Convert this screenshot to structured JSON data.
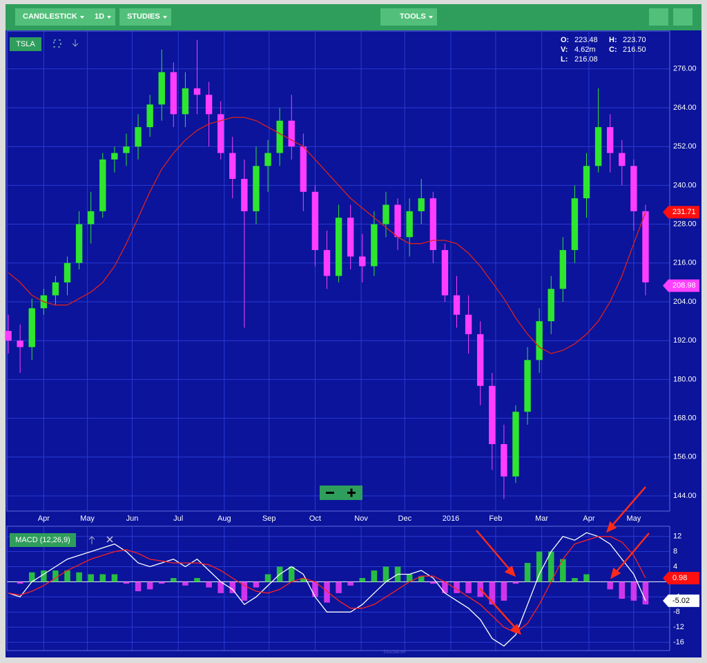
{
  "toolbar": {
    "chart_type": "CANDLESTICK",
    "interval": "1D",
    "studies": "STUDIES",
    "tools": "TOOLS"
  },
  "chart_data": [
    {
      "type": "candlestick",
      "symbol": "TSLA",
      "readout": [
        {
          "label": "O:",
          "value": "223.48"
        },
        {
          "label": "H:",
          "value": "223.70"
        },
        {
          "label": "V:",
          "value": "4.62m"
        },
        {
          "label": "C:",
          "value": "216.50"
        },
        {
          "label": "L:",
          "value": "216.08"
        }
      ],
      "x": [
        0,
        1,
        2,
        3,
        4,
        5,
        6,
        7,
        8,
        9,
        10,
        11,
        12,
        13,
        14,
        15,
        16,
        17,
        18,
        19,
        20,
        21,
        22,
        23,
        24,
        25,
        26,
        27,
        28,
        29,
        30,
        31,
        32,
        33,
        34,
        35,
        36,
        37,
        38,
        39,
        40,
        41,
        42,
        43,
        44,
        45,
        46,
        47,
        48,
        49,
        50,
        51,
        52,
        53,
        54
      ],
      "open": [
        195,
        192,
        190,
        202,
        206,
        210,
        216,
        228,
        232,
        248,
        250,
        252,
        258,
        265,
        275,
        262,
        270,
        268,
        262,
        250,
        242,
        232,
        246,
        250,
        260,
        252,
        238,
        220,
        212,
        230,
        218,
        215,
        228,
        234,
        224,
        232,
        236,
        220,
        206,
        200,
        194,
        178,
        160,
        150,
        170,
        186,
        198,
        208,
        220,
        236,
        246,
        258,
        250,
        246,
        232
      ],
      "high": [
        200,
        197,
        205,
        208,
        212,
        218,
        232,
        238,
        250,
        252,
        256,
        262,
        268,
        282,
        278,
        275,
        285,
        272,
        266,
        255,
        248,
        252,
        254,
        264,
        268,
        256,
        240,
        226,
        234,
        234,
        225,
        232,
        238,
        236,
        236,
        242,
        238,
        222,
        212,
        206,
        198,
        182,
        166,
        172,
        190,
        202,
        212,
        224,
        240,
        250,
        270,
        262,
        254,
        248,
        234
      ],
      "low": [
        188,
        182,
        186,
        200,
        203,
        206,
        214,
        222,
        230,
        244,
        246,
        248,
        255,
        260,
        258,
        258,
        262,
        252,
        248,
        236,
        196,
        228,
        238,
        246,
        248,
        232,
        215,
        208,
        210,
        214,
        210,
        212,
        224,
        220,
        218,
        228,
        216,
        204,
        196,
        188,
        172,
        152,
        143,
        148,
        166,
        182,
        194,
        204,
        216,
        230,
        244,
        244,
        240,
        226,
        206
      ],
      "close": [
        192,
        190,
        202,
        206,
        210,
        216,
        228,
        232,
        248,
        250,
        252,
        258,
        265,
        275,
        262,
        270,
        268,
        262,
        250,
        242,
        232,
        246,
        250,
        260,
        252,
        238,
        220,
        212,
        230,
        218,
        215,
        228,
        234,
        224,
        232,
        236,
        220,
        206,
        200,
        194,
        178,
        160,
        150,
        170,
        186,
        198,
        208,
        220,
        236,
        246,
        258,
        250,
        246,
        232,
        210
      ],
      "up_color": "#2ee62e",
      "down_color": "#ff3dff",
      "overlay": {
        "color": "#e0201c",
        "values": [
          213,
          210,
          206,
          204,
          203,
          203,
          205,
          207,
          210,
          215,
          222,
          230,
          238,
          245,
          250,
          254,
          257,
          259,
          260,
          261,
          261,
          260,
          258,
          256,
          254,
          252,
          248,
          244,
          240,
          236,
          233,
          230,
          227,
          224,
          222,
          222,
          223,
          223,
          222,
          219,
          215,
          210,
          205,
          199,
          194,
          190,
          188,
          189,
          191,
          194,
          198,
          204,
          212,
          222,
          231.71
        ]
      },
      "price_flags": [
        {
          "value": 231.71,
          "color": "#ff1010",
          "text_color": "#ffffff"
        },
        {
          "value": 208.98,
          "color": "#ff40ff",
          "text_color": "#ffffff"
        }
      ],
      "xlim": [
        -0.12,
        56.05
      ],
      "xticks": [
        {
          "value": 3.0,
          "label": "Apr"
        },
        {
          "value": 6.7,
          "label": "May"
        },
        {
          "value": 10.5,
          "label": "Jun"
        },
        {
          "value": 14.4,
          "label": "Jul"
        },
        {
          "value": 18.3,
          "label": "Aug"
        },
        {
          "value": 22.1,
          "label": "Sep"
        },
        {
          "value": 26.0,
          "label": "Oct"
        },
        {
          "value": 29.9,
          "label": "Nov"
        },
        {
          "value": 33.6,
          "label": "Dec"
        },
        {
          "value": 37.5,
          "label": "2016"
        },
        {
          "value": 41.3,
          "label": "Feb"
        },
        {
          "value": 45.2,
          "label": "Mar"
        },
        {
          "value": 49.2,
          "label": "Apr"
        },
        {
          "value": 53.0,
          "label": "May"
        }
      ],
      "ylim": [
        139.3,
        287.7
      ],
      "yticks": [
        {
          "value": 144,
          "label": "144.00"
        },
        {
          "value": 156,
          "label": "156.00"
        },
        {
          "value": 168,
          "label": "168.00"
        },
        {
          "value": 180,
          "label": "180.00"
        },
        {
          "value": 192,
          "label": "192.00"
        },
        {
          "value": 204,
          "label": "204.00"
        },
        {
          "value": 216,
          "label": "216.00"
        },
        {
          "value": 228,
          "label": "228.00"
        },
        {
          "value": 240,
          "label": "240.00"
        },
        {
          "value": 252,
          "label": "252.00"
        },
        {
          "value": 264,
          "label": "264.00"
        },
        {
          "value": 276,
          "label": "276.00"
        }
      ],
      "grid": true
    },
    {
      "type": "macd",
      "title": "MACD (12,26,9)",
      "x": [
        0,
        1,
        2,
        3,
        4,
        5,
        6,
        7,
        8,
        9,
        10,
        11,
        12,
        13,
        14,
        15,
        16,
        17,
        18,
        19,
        20,
        21,
        22,
        23,
        24,
        25,
        26,
        27,
        28,
        29,
        30,
        31,
        32,
        33,
        34,
        35,
        36,
        37,
        38,
        39,
        40,
        41,
        42,
        43,
        44,
        45,
        46,
        47,
        48,
        49,
        50,
        51,
        52,
        53,
        54
      ],
      "series": [
        {
          "color": "#ffffff",
          "values": [
            -3,
            -4,
            0,
            2,
            4,
            6,
            7,
            8,
            9,
            10,
            8,
            5,
            4,
            5,
            6,
            4,
            6,
            3,
            0,
            -2,
            -6,
            -4,
            -1,
            2,
            4,
            2,
            -4,
            -8,
            -8,
            -8,
            -6,
            -3,
            0,
            2,
            2,
            3,
            1,
            -3,
            -5,
            -7,
            -10,
            -15,
            -17,
            -14,
            -6,
            2,
            8,
            12,
            11,
            13,
            12,
            10,
            6,
            2,
            -5.02
          ]
        },
        {
          "color": "#ff2020",
          "values": [
            -3,
            -3.5,
            -2.5,
            -1,
            1,
            3,
            4.5,
            6,
            7,
            8,
            8.5,
            7.5,
            6,
            5.5,
            5,
            5,
            5,
            4.5,
            3,
            1,
            -1,
            -2.5,
            -3,
            -2,
            0,
            1,
            0,
            -2.5,
            -5,
            -7,
            -7,
            -6,
            -4,
            -2,
            0,
            1.5,
            1.5,
            0,
            -2,
            -4,
            -6,
            -9,
            -12,
            -13.5,
            -11,
            -6,
            0,
            6,
            10,
            11,
            12,
            12,
            10.5,
            7,
            0.98
          ]
        }
      ],
      "histogram": {
        "up_color": "#2ee62e",
        "down_color": "#ff3dff",
        "values": [
          0,
          -0.5,
          2.5,
          3,
          3,
          3,
          2.5,
          2,
          2,
          2,
          -0.5,
          -2.5,
          -2,
          -0.5,
          1,
          -1,
          1,
          -1.5,
          -3,
          -3,
          -5,
          -1.5,
          2,
          4,
          4,
          1,
          -4,
          -5.5,
          -3,
          -1,
          1,
          3,
          4,
          4,
          2,
          1.5,
          -0.5,
          -3,
          -3,
          -3,
          -4,
          -6,
          -5,
          -0.5,
          5,
          8,
          8,
          6,
          1,
          2,
          0,
          -2,
          -4.5,
          -5,
          -6
        ]
      },
      "price_flags": [
        {
          "value": 0.98,
          "color": "#ff1010",
          "text_color": "#ffffff"
        },
        {
          "value": -5.02,
          "color": "#ffffff",
          "text_color": "#000000"
        }
      ],
      "ylim": [
        -18.2,
        14.7
      ],
      "yticks": [
        -16,
        -12,
        -8,
        -4,
        0,
        4,
        8,
        12
      ],
      "grid": true
    }
  ],
  "footer": {
    "disclaimer": "Disclaimer"
  }
}
